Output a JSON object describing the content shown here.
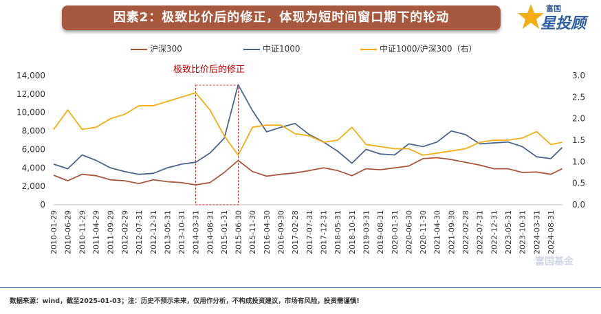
{
  "header": {
    "title": "因素2：极致比价后的修正，体现为短时间窗口期下的轮动"
  },
  "logo": {
    "small_text": "富国",
    "big_text": "星投顾"
  },
  "annotation": {
    "text": "极致比价后的修正"
  },
  "footer": {
    "note": "数据来源：wind，截至2025-01-03；注：历史不预示未来，仅用作分析，不构成投资建议，市场有风险，投资需谨慎!"
  },
  "watermark": {
    "text": "富国基金"
  },
  "colors": {
    "hs300": "#a8583d",
    "zz1000": "#4a6587",
    "ratio": "#f2ae14",
    "banner": "#a8583d",
    "annot": "#c00000"
  },
  "chart_data": {
    "type": "line",
    "legend_position": "top",
    "grid": false,
    "x_ticks": [
      "2010-01-29",
      "2010-06-29",
      "2010-11-29",
      "2011-04-29",
      "2011-09-29",
      "2012-02-29",
      "2012-07-31",
      "2012-12-31",
      "2013-05-31",
      "2013-10-31",
      "2014-03-31",
      "2014-08-31",
      "2015-01-31",
      "2015-06-30",
      "2015-11-30",
      "2016-04-30",
      "2016-09-30",
      "2017-02-28",
      "2017-07-31",
      "2017-12-31",
      "2018-05-31",
      "2018-10-31",
      "2019-03-31",
      "2019-08-31",
      "2020-01-31",
      "2020-06-30",
      "2020-11-30",
      "2021-04-30",
      "2021-09-30",
      "2022-02-28",
      "2022-07-31",
      "2022-12-31",
      "2023-05-31",
      "2023-10-31",
      "2024-03-31",
      "2024-08-31"
    ],
    "y_left": {
      "ticks": [
        "0",
        "2,000",
        "4,000",
        "6,000",
        "8,000",
        "10,000",
        "12,000",
        "14,000"
      ],
      "min": 0,
      "max": 14000
    },
    "y_right": {
      "ticks": [
        "0.0",
        "0.5",
        "1.0",
        "1.5",
        "2.0",
        "2.5",
        "3.0"
      ],
      "min": 0,
      "max": 3
    },
    "highlight": {
      "from": "2014-03-31",
      "to": "2015-06-30",
      "style": "red dashed box"
    },
    "series": [
      {
        "name": "沪深300",
        "axis": "left",
        "color": "#a8583d",
        "dates": [
          "2010-01-29",
          "2010-06-30",
          "2010-11-30",
          "2011-04-30",
          "2011-09-30",
          "2012-02-29",
          "2012-07-31",
          "2012-12-31",
          "2013-05-31",
          "2013-10-31",
          "2014-03-31",
          "2014-08-31",
          "2015-01-31",
          "2015-06-30",
          "2015-11-30",
          "2016-04-30",
          "2016-09-30",
          "2017-02-28",
          "2017-07-31",
          "2017-12-31",
          "2018-05-31",
          "2018-10-31",
          "2019-03-31",
          "2019-08-31",
          "2020-01-31",
          "2020-06-30",
          "2020-11-30",
          "2021-04-30",
          "2021-09-30",
          "2022-02-28",
          "2022-07-31",
          "2022-12-31",
          "2023-05-31",
          "2023-10-31",
          "2024-03-31",
          "2024-08-31",
          "2024-12-31"
        ],
        "values": [
          3200,
          2600,
          3300,
          3150,
          2700,
          2600,
          2300,
          2700,
          2500,
          2400,
          2150,
          2400,
          3500,
          4800,
          3600,
          3100,
          3300,
          3450,
          3700,
          4000,
          3700,
          3150,
          3900,
          3800,
          4000,
          4200,
          5000,
          5100,
          4900,
          4600,
          4300,
          3900,
          3900,
          3500,
          3550,
          3300,
          3900
        ]
      },
      {
        "name": "中证1000",
        "axis": "left",
        "color": "#4a6587",
        "dates": [
          "2010-01-29",
          "2010-06-30",
          "2010-11-30",
          "2011-04-30",
          "2011-09-30",
          "2012-02-29",
          "2012-07-31",
          "2012-12-31",
          "2013-05-31",
          "2013-10-31",
          "2014-03-31",
          "2014-08-31",
          "2015-01-31",
          "2015-06-30",
          "2015-11-30",
          "2016-04-30",
          "2016-09-30",
          "2017-02-28",
          "2017-07-31",
          "2017-12-31",
          "2018-05-31",
          "2018-10-31",
          "2019-03-31",
          "2019-08-31",
          "2020-01-31",
          "2020-06-30",
          "2020-11-30",
          "2021-04-30",
          "2021-09-30",
          "2022-02-28",
          "2022-07-31",
          "2022-12-31",
          "2023-05-31",
          "2023-10-31",
          "2024-03-31",
          "2024-08-31",
          "2024-12-31"
        ],
        "values": [
          4400,
          3900,
          5400,
          4800,
          4000,
          3600,
          3300,
          3400,
          4000,
          4400,
          4600,
          5600,
          7200,
          13000,
          10200,
          7900,
          8400,
          8800,
          7600,
          6800,
          5800,
          4500,
          6000,
          5500,
          5400,
          6600,
          6300,
          6800,
          8000,
          7600,
          6600,
          6700,
          6800,
          6300,
          5200,
          5000,
          6200
        ]
      },
      {
        "name": "中证1000/沪深300（右）",
        "axis": "right",
        "color": "#f2ae14",
        "dates": [
          "2010-01-29",
          "2010-06-30",
          "2010-11-30",
          "2011-04-30",
          "2011-09-30",
          "2012-02-29",
          "2012-07-31",
          "2012-12-31",
          "2013-05-31",
          "2013-10-31",
          "2014-03-31",
          "2014-08-31",
          "2015-01-31",
          "2015-06-30",
          "2015-11-30",
          "2016-04-30",
          "2016-09-30",
          "2017-02-28",
          "2017-07-31",
          "2017-12-31",
          "2018-05-31",
          "2018-10-31",
          "2019-03-31",
          "2019-08-31",
          "2020-01-31",
          "2020-06-30",
          "2020-11-30",
          "2021-04-30",
          "2021-09-30",
          "2022-02-28",
          "2022-07-31",
          "2022-12-31",
          "2023-05-31",
          "2023-10-31",
          "2024-03-31",
          "2024-08-31",
          "2024-12-31"
        ],
        "values": [
          1.75,
          2.2,
          1.75,
          1.8,
          2.0,
          2.1,
          2.3,
          2.3,
          2.4,
          2.5,
          2.6,
          2.2,
          1.6,
          1.15,
          1.8,
          1.85,
          1.85,
          1.65,
          1.6,
          1.45,
          1.5,
          1.8,
          1.4,
          1.35,
          1.3,
          1.3,
          1.15,
          1.2,
          1.25,
          1.3,
          1.45,
          1.5,
          1.5,
          1.55,
          1.7,
          1.4,
          1.45
        ]
      }
    ]
  }
}
